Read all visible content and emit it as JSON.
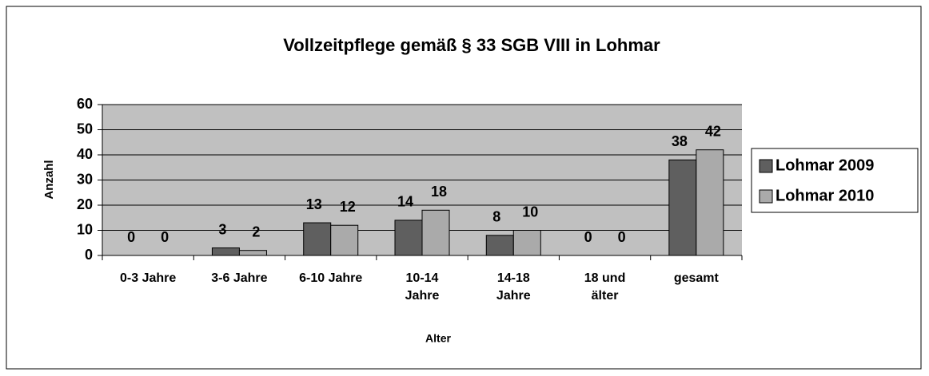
{
  "chart_data": {
    "type": "bar",
    "title": "Vollzeitpflege gemäß § 33 SGB VIII in Lohmar",
    "x_label": "Alter",
    "y_label": "Anzahl",
    "categories": [
      "0-3 Jahre",
      "3-6 Jahre",
      "6-10 Jahre",
      "10-14 Jahre",
      "14-18 Jahre",
      "18 und älter",
      "gesamt"
    ],
    "series": [
      {
        "name": "Lohmar 2009",
        "color": "#5f5f5f",
        "values": [
          0,
          3,
          13,
          14,
          8,
          0,
          38
        ]
      },
      {
        "name": "Lohmar 2010",
        "color": "#aaaaaa",
        "values": [
          0,
          2,
          12,
          18,
          10,
          0,
          42
        ]
      }
    ],
    "ylim": [
      0,
      60
    ],
    "yticks": [
      0,
      10,
      20,
      30,
      40,
      50,
      60
    ],
    "grid": true,
    "legend": "right"
  }
}
